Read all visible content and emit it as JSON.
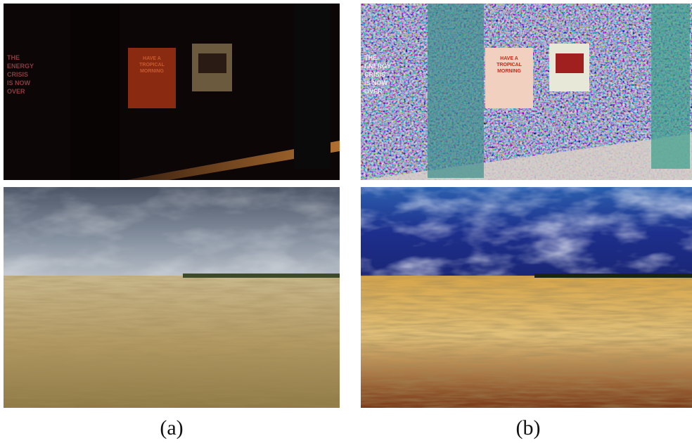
{
  "figure": {
    "subfigures": [
      {
        "caption": "(a)",
        "poster_left": [
          "THE",
          "ENERGY",
          "CRISIS",
          "IS NOW",
          "OVER"
        ],
        "poster_center": [
          "HAVE A",
          "TROPICAL",
          "MORNING"
        ]
      },
      {
        "caption": "(b)",
        "poster_left": [
          "THE",
          "ENERGY",
          "CRISIS",
          "IS NOW",
          "OVER"
        ],
        "poster_center": [
          "HAVE A",
          "TROPICAL",
          "MORNING"
        ]
      }
    ]
  }
}
